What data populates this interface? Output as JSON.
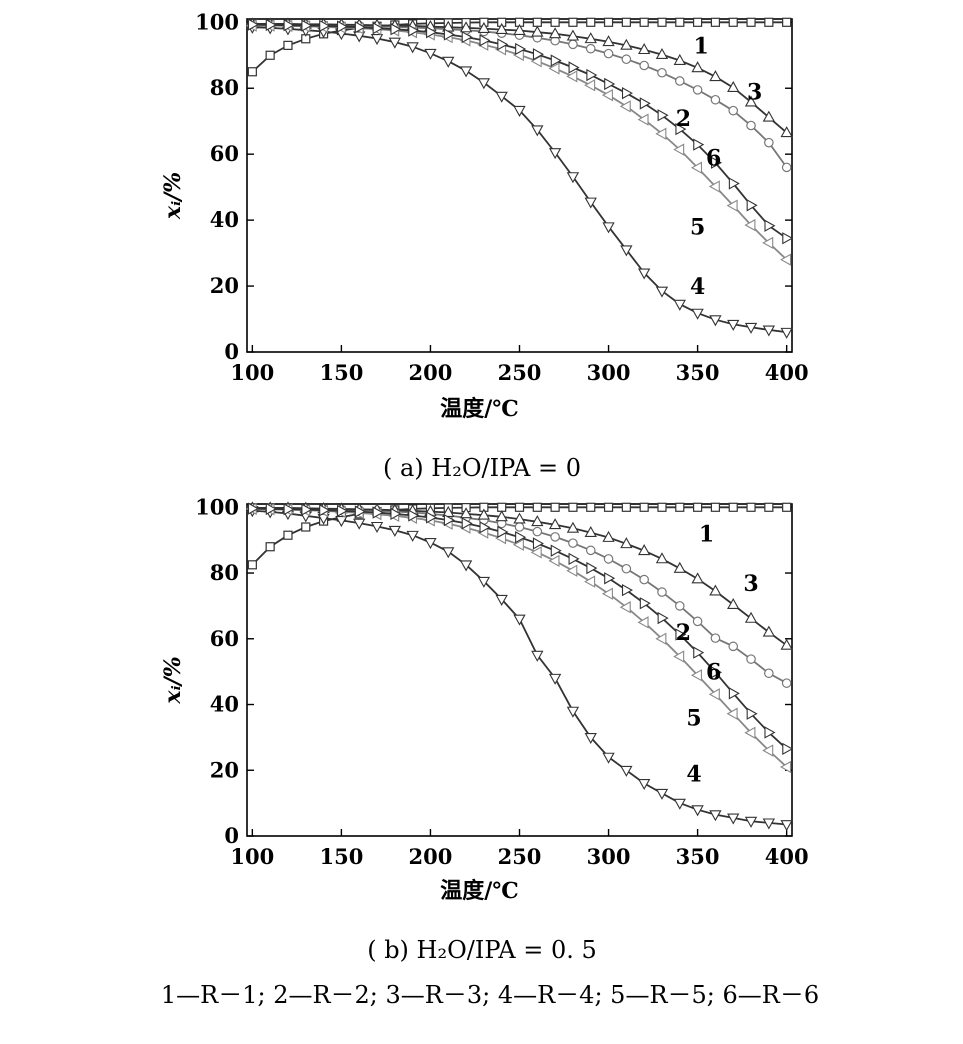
{
  "chart_data": [
    {
      "type": "line",
      "caption": "( a) H₂O/IPA = 0",
      "xlabel": "温度/℃",
      "ylabel": "xᵢ/%",
      "xlim": [
        97,
        403
      ],
      "ylim": [
        0,
        101
      ],
      "xticks": [
        100,
        150,
        200,
        250,
        300,
        350,
        400
      ],
      "yticks": [
        0,
        20,
        40,
        60,
        80,
        100
      ],
      "grid": false,
      "series": [
        {
          "name": "1",
          "marker": "square",
          "color": "#333333",
          "x": [
            100,
            110,
            120,
            130,
            140,
            150,
            160,
            170,
            180,
            190,
            200,
            210,
            220,
            230,
            240,
            250,
            260,
            270,
            280,
            290,
            300,
            310,
            320,
            330,
            340,
            350,
            360,
            370,
            380,
            390,
            400
          ],
          "y": [
            85,
            90,
            93,
            95,
            96.5,
            97.5,
            98.3,
            98.8,
            99.2,
            99.5,
            99.7,
            99.8,
            99.9,
            100,
            100,
            100,
            100,
            100,
            100,
            100,
            100,
            100,
            100,
            100,
            100,
            100,
            100,
            100,
            100,
            100,
            100
          ]
        },
        {
          "name": "2",
          "marker": "circle",
          "color": "#777777",
          "x": [
            100,
            110,
            120,
            130,
            140,
            150,
            160,
            170,
            180,
            190,
            200,
            210,
            220,
            230,
            240,
            250,
            260,
            270,
            280,
            290,
            300,
            310,
            320,
            330,
            340,
            350,
            360,
            370,
            380,
            390,
            400
          ],
          "y": [
            99.5,
            99.5,
            99.4,
            99.3,
            99.2,
            99.1,
            99,
            98.8,
            98.6,
            98.4,
            98.2,
            97.9,
            97.6,
            97.2,
            96.7,
            96.1,
            95.3,
            94.4,
            93.3,
            92,
            90.5,
            88.8,
            86.9,
            84.7,
            82.2,
            79.5,
            76.5,
            73.2,
            68.7,
            63.5,
            56
          ]
        },
        {
          "name": "3",
          "marker": "triangle-up",
          "color": "#333333",
          "x": [
            100,
            110,
            120,
            130,
            140,
            150,
            160,
            170,
            180,
            190,
            200,
            210,
            220,
            230,
            240,
            250,
            260,
            270,
            280,
            290,
            300,
            310,
            320,
            330,
            340,
            350,
            360,
            370,
            380,
            390,
            400
          ],
          "y": [
            99.5,
            99.5,
            99.5,
            99.4,
            99.4,
            99.3,
            99.2,
            99.1,
            99,
            98.9,
            98.7,
            98.5,
            98.3,
            98.1,
            97.8,
            97.5,
            97,
            96.5,
            95.8,
            95,
            94.1,
            93,
            91.7,
            90.2,
            88.4,
            86.2,
            83.5,
            80.2,
            75.8,
            71.2,
            66.5
          ]
        },
        {
          "name": "4",
          "marker": "triangle-down",
          "color": "#333333",
          "x": [
            100,
            110,
            120,
            130,
            140,
            150,
            160,
            170,
            180,
            190,
            200,
            210,
            220,
            230,
            240,
            250,
            260,
            270,
            280,
            290,
            300,
            310,
            320,
            330,
            340,
            350,
            360,
            370,
            380,
            390,
            400
          ],
          "y": [
            98.5,
            98.3,
            98,
            97.6,
            97.2,
            96.6,
            95.9,
            95.1,
            94,
            92.6,
            90.6,
            88.2,
            85.3,
            81.7,
            77.6,
            73.3,
            67.4,
            60.5,
            53.2,
            45.5,
            38,
            31,
            24,
            18.5,
            14.5,
            11.8,
            9.8,
            8.4,
            7.5,
            6.7,
            6
          ]
        },
        {
          "name": "5",
          "marker": "triangle-left",
          "color": "#888888",
          "x": [
            100,
            110,
            120,
            130,
            140,
            150,
            160,
            170,
            180,
            190,
            200,
            210,
            220,
            230,
            240,
            250,
            260,
            270,
            280,
            290,
            300,
            310,
            320,
            330,
            340,
            350,
            360,
            370,
            380,
            390,
            400
          ],
          "y": [
            99,
            99,
            98.9,
            98.8,
            98.6,
            98.4,
            98.2,
            97.9,
            97.5,
            97,
            96.3,
            95.5,
            94.5,
            93.2,
            91.8,
            90.1,
            88.2,
            86,
            83.6,
            80.9,
            77.9,
            74.5,
            70.5,
            66.2,
            61.4,
            55.9,
            50.2,
            44.4,
            38.5,
            33.1,
            28
          ]
        },
        {
          "name": "6",
          "marker": "triangle-right",
          "color": "#333333",
          "x": [
            100,
            110,
            120,
            130,
            140,
            150,
            160,
            170,
            180,
            190,
            200,
            210,
            220,
            230,
            240,
            250,
            260,
            270,
            280,
            290,
            300,
            310,
            320,
            330,
            340,
            350,
            360,
            370,
            380,
            390,
            400
          ],
          "y": [
            99.3,
            99.2,
            99.1,
            99,
            98.9,
            98.7,
            98.5,
            98.2,
            97.9,
            97.5,
            97,
            96.3,
            95.5,
            94.5,
            93.3,
            91.9,
            90.3,
            88.4,
            86.3,
            84,
            81.3,
            78.5,
            75.4,
            71.8,
            67.6,
            62.9,
            57.4,
            51.1,
            44.5,
            38.3,
            34.5
          ]
        }
      ],
      "curve_labels": [
        {
          "text": "1",
          "x": 352,
          "y": 93
        },
        {
          "text": "3",
          "x": 382,
          "y": 79
        },
        {
          "text": "2",
          "x": 342,
          "y": 71
        },
        {
          "text": "6",
          "x": 359,
          "y": 59
        },
        {
          "text": "5",
          "x": 350,
          "y": 38
        },
        {
          "text": "4",
          "x": 350,
          "y": 20
        }
      ]
    },
    {
      "type": "line",
      "caption": "( b) H₂O/IPA = 0. 5",
      "xlabel": "温度/℃",
      "ylabel": "xᵢ/%",
      "xlim": [
        97,
        403
      ],
      "ylim": [
        0,
        101
      ],
      "xticks": [
        100,
        150,
        200,
        250,
        300,
        350,
        400
      ],
      "yticks": [
        0,
        20,
        40,
        60,
        80,
        100
      ],
      "grid": false,
      "series": [
        {
          "name": "1",
          "marker": "square",
          "color": "#333333",
          "x": [
            100,
            110,
            120,
            130,
            140,
            150,
            160,
            170,
            180,
            190,
            200,
            210,
            220,
            230,
            240,
            250,
            260,
            270,
            280,
            290,
            300,
            310,
            320,
            330,
            340,
            350,
            360,
            370,
            380,
            390,
            400
          ],
          "y": [
            82.5,
            88,
            91.5,
            94,
            95.8,
            97,
            98,
            98.7,
            99.2,
            99.5,
            99.7,
            99.8,
            99.9,
            100,
            100,
            100,
            100,
            100,
            100,
            100,
            100,
            100,
            100,
            100,
            100,
            100,
            100,
            100,
            100,
            100,
            100
          ]
        },
        {
          "name": "2",
          "marker": "circle",
          "color": "#777777",
          "x": [
            100,
            110,
            120,
            130,
            140,
            150,
            160,
            170,
            180,
            190,
            200,
            210,
            220,
            230,
            240,
            250,
            260,
            270,
            280,
            290,
            300,
            310,
            320,
            330,
            340,
            350,
            360,
            370,
            380,
            390,
            400
          ],
          "y": [
            99.8,
            99.8,
            99.7,
            99.6,
            99.5,
            99.4,
            99.2,
            99,
            98.7,
            98.4,
            98,
            97.5,
            96.8,
            96.1,
            95.1,
            94,
            92.6,
            91,
            89.1,
            86.9,
            84.3,
            81.3,
            78,
            74.2,
            70,
            65.3,
            60.2,
            57.7,
            53.8,
            49.5,
            46.5
          ]
        },
        {
          "name": "3",
          "marker": "triangle-up",
          "color": "#333333",
          "x": [
            100,
            110,
            120,
            130,
            140,
            150,
            160,
            170,
            180,
            190,
            200,
            210,
            220,
            230,
            240,
            250,
            260,
            270,
            280,
            290,
            300,
            310,
            320,
            330,
            340,
            350,
            360,
            370,
            380,
            390,
            400
          ],
          "y": [
            99.8,
            99.8,
            99.8,
            99.7,
            99.6,
            99.5,
            99.4,
            99.3,
            99.1,
            98.9,
            98.7,
            98.4,
            98,
            97.6,
            97.1,
            96.4,
            95.6,
            94.7,
            93.6,
            92.3,
            90.8,
            88.9,
            86.8,
            84.3,
            81.4,
            78.2,
            74.5,
            70.4,
            66.2,
            62,
            58
          ]
        },
        {
          "name": "4",
          "marker": "triangle-down",
          "color": "#333333",
          "x": [
            100,
            110,
            120,
            130,
            140,
            150,
            160,
            170,
            180,
            190,
            200,
            210,
            220,
            230,
            240,
            250,
            260,
            270,
            280,
            290,
            300,
            310,
            320,
            330,
            340,
            350,
            360,
            370,
            380,
            390,
            400
          ],
          "y": [
            99,
            98.6,
            98.1,
            97.4,
            96.7,
            96,
            95.2,
            94.2,
            93,
            91.5,
            89.3,
            86.5,
            82.5,
            77.5,
            72,
            66,
            55,
            48,
            38,
            30,
            24,
            20,
            16,
            13,
            10,
            8,
            6.5,
            5.5,
            4.5,
            4,
            3.5
          ]
        },
        {
          "name": "5",
          "marker": "triangle-left",
          "color": "#888888",
          "x": [
            100,
            110,
            120,
            130,
            140,
            150,
            160,
            170,
            180,
            190,
            200,
            210,
            220,
            230,
            240,
            250,
            260,
            270,
            280,
            290,
            300,
            310,
            320,
            330,
            340,
            350,
            360,
            370,
            380,
            390,
            400
          ],
          "y": [
            99.5,
            99.4,
            99.3,
            99.1,
            98.9,
            98.6,
            98.3,
            97.9,
            97.4,
            96.8,
            96,
            95,
            93.8,
            92.3,
            90.6,
            88.6,
            86.3,
            83.7,
            80.7,
            77.4,
            73.7,
            69.6,
            65,
            60,
            54.6,
            48.9,
            43.1,
            37.2,
            31.4,
            26,
            21
          ]
        },
        {
          "name": "6",
          "marker": "triangle-right",
          "color": "#333333",
          "x": [
            100,
            110,
            120,
            130,
            140,
            150,
            160,
            170,
            180,
            190,
            200,
            210,
            220,
            230,
            240,
            250,
            260,
            270,
            280,
            290,
            300,
            310,
            320,
            330,
            340,
            350,
            360,
            370,
            380,
            390,
            400
          ],
          "y": [
            99.6,
            99.5,
            99.4,
            99.3,
            99.1,
            98.9,
            98.7,
            98.4,
            98,
            97.5,
            96.9,
            96.1,
            95.1,
            93.9,
            92.5,
            90.9,
            89,
            86.8,
            84.3,
            81.5,
            78.4,
            74.8,
            70.8,
            66.3,
            61.3,
            55.8,
            49.8,
            43.4,
            37.2,
            31.5,
            26.5
          ]
        }
      ],
      "curve_labels": [
        {
          "text": "1",
          "x": 355,
          "y": 92
        },
        {
          "text": "3",
          "x": 380,
          "y": 77
        },
        {
          "text": "2",
          "x": 342,
          "y": 62
        },
        {
          "text": "6",
          "x": 359,
          "y": 50
        },
        {
          "text": "5",
          "x": 348,
          "y": 36
        },
        {
          "text": "4",
          "x": 348,
          "y": 19
        }
      ]
    }
  ],
  "legend_caption": "1—R－1; 2—R－2; 3—R－3; 4—R－4; 5—R－5; 6—R－6"
}
